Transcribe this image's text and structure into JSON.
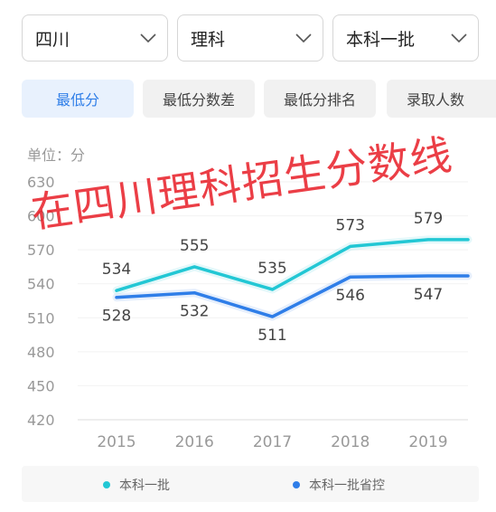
{
  "filters": {
    "province": "四川",
    "subject": "理科",
    "batch": "本科一批"
  },
  "tabs": [
    "最低分",
    "最低分数差",
    "最低分排名",
    "录取人数"
  ],
  "unit_label": "单位：分",
  "watermark": "在四川理科招生分数线",
  "colors": {
    "series_1": "#22c7d4",
    "series_2": "#2f7ee8",
    "accent": "#2f7ee8",
    "watermark": "#e81c26"
  },
  "icons": {
    "dropdown": "chevron-down-icon"
  },
  "chart_data": {
    "type": "line",
    "x": [
      "2015",
      "2016",
      "2017",
      "2018",
      "2019"
    ],
    "y_ticks": [
      420,
      450,
      480,
      510,
      540,
      570,
      600,
      630
    ],
    "ylim": [
      420,
      630
    ],
    "grid": true,
    "legend_position": "bottom",
    "series": [
      {
        "name": "本科一批",
        "values": [
          534,
          555,
          535,
          573,
          579
        ]
      },
      {
        "name": "本科一批省控",
        "values": [
          528,
          532,
          511,
          546,
          547
        ]
      }
    ]
  }
}
